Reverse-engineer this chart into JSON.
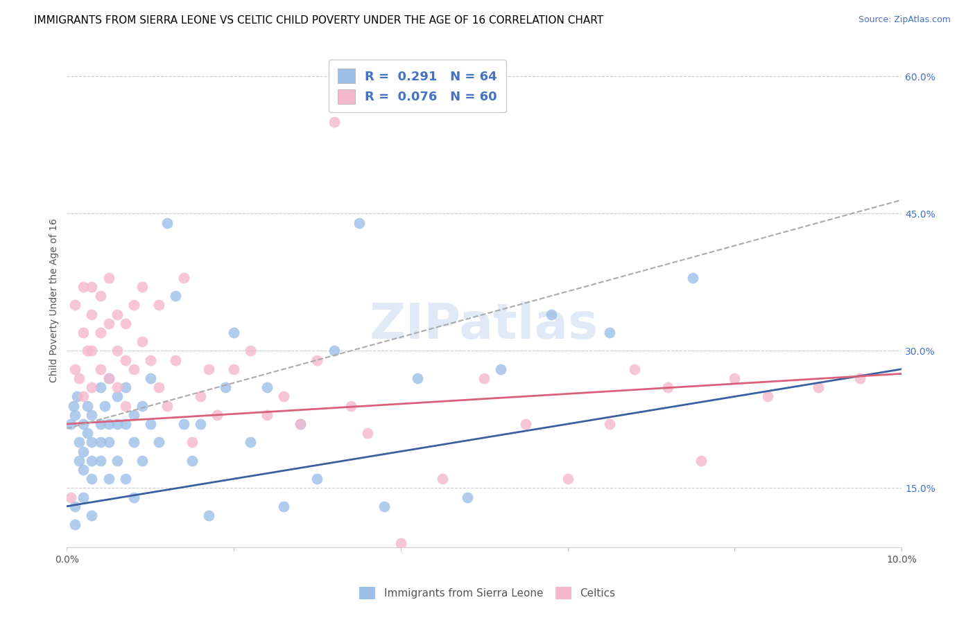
{
  "title": "IMMIGRANTS FROM SIERRA LEONE VS CELTIC CHILD POVERTY UNDER THE AGE OF 16 CORRELATION CHART",
  "source": "Source: ZipAtlas.com",
  "ylabel": "Child Poverty Under the Age of 16",
  "xlim": [
    0.0,
    0.1
  ],
  "ylim": [
    0.085,
    0.625
  ],
  "xticks": [
    0.0,
    0.02,
    0.04,
    0.06,
    0.08,
    0.1
  ],
  "xticklabels": [
    "0.0%",
    "",
    "",
    "",
    "",
    "10.0%"
  ],
  "yticks_right": [
    0.1,
    0.15,
    0.2,
    0.25,
    0.3,
    0.35,
    0.4,
    0.45,
    0.5,
    0.55,
    0.6
  ],
  "ytick_labels_right": [
    "",
    "15.0%",
    "",
    "",
    "30.0%",
    "",
    "",
    "45.0%",
    "",
    "",
    "60.0%"
  ],
  "legend_R1": "R =  0.291   N = 64",
  "legend_R2": "R =  0.076   N = 60",
  "legend_label1": "Immigrants from Sierra Leone",
  "legend_label2": "Celtics",
  "color_blue": "#9dbfe8",
  "color_pink": "#f5b8cc",
  "color_trend_blue": "#3a5fa0",
  "color_trend_pink": "#d9607a",
  "color_trend_dashed": "#aaaaaa",
  "title_fontsize": 11,
  "axis_label_fontsize": 10,
  "tick_fontsize": 10,
  "blue_trend_x": [
    0.0,
    0.1
  ],
  "blue_trend_y": [
    0.13,
    0.28
  ],
  "pink_trend_x": [
    0.0,
    0.1
  ],
  "pink_trend_y": [
    0.22,
    0.275
  ],
  "dashed_trend_x": [
    0.0,
    0.1
  ],
  "dashed_trend_y": [
    0.215,
    0.465
  ],
  "blue_scatter_x": [
    0.0005,
    0.0008,
    0.001,
    0.001,
    0.001,
    0.0012,
    0.0015,
    0.0015,
    0.002,
    0.002,
    0.002,
    0.002,
    0.0025,
    0.0025,
    0.003,
    0.003,
    0.003,
    0.003,
    0.003,
    0.004,
    0.004,
    0.004,
    0.004,
    0.0045,
    0.005,
    0.005,
    0.005,
    0.005,
    0.006,
    0.006,
    0.006,
    0.007,
    0.007,
    0.007,
    0.008,
    0.008,
    0.008,
    0.009,
    0.009,
    0.01,
    0.01,
    0.011,
    0.012,
    0.013,
    0.014,
    0.015,
    0.016,
    0.017,
    0.019,
    0.02,
    0.022,
    0.024,
    0.026,
    0.028,
    0.03,
    0.032,
    0.035,
    0.038,
    0.042,
    0.048,
    0.052,
    0.058,
    0.065,
    0.075
  ],
  "blue_scatter_y": [
    0.22,
    0.24,
    0.23,
    0.11,
    0.13,
    0.25,
    0.2,
    0.18,
    0.22,
    0.19,
    0.17,
    0.14,
    0.24,
    0.21,
    0.23,
    0.2,
    0.18,
    0.16,
    0.12,
    0.26,
    0.22,
    0.2,
    0.18,
    0.24,
    0.27,
    0.22,
    0.2,
    0.16,
    0.25,
    0.22,
    0.18,
    0.26,
    0.22,
    0.16,
    0.23,
    0.2,
    0.14,
    0.24,
    0.18,
    0.27,
    0.22,
    0.2,
    0.44,
    0.36,
    0.22,
    0.18,
    0.22,
    0.12,
    0.26,
    0.32,
    0.2,
    0.26,
    0.13,
    0.22,
    0.16,
    0.3,
    0.44,
    0.13,
    0.27,
    0.14,
    0.28,
    0.34,
    0.32,
    0.38
  ],
  "pink_scatter_x": [
    0.0005,
    0.001,
    0.001,
    0.0015,
    0.002,
    0.002,
    0.002,
    0.0025,
    0.003,
    0.003,
    0.003,
    0.003,
    0.004,
    0.004,
    0.004,
    0.005,
    0.005,
    0.005,
    0.006,
    0.006,
    0.006,
    0.007,
    0.007,
    0.007,
    0.008,
    0.008,
    0.009,
    0.009,
    0.01,
    0.011,
    0.011,
    0.012,
    0.013,
    0.014,
    0.015,
    0.016,
    0.017,
    0.018,
    0.02,
    0.022,
    0.024,
    0.026,
    0.028,
    0.03,
    0.032,
    0.034,
    0.036,
    0.04,
    0.045,
    0.05,
    0.055,
    0.06,
    0.065,
    0.068,
    0.072,
    0.076,
    0.08,
    0.084,
    0.09,
    0.095
  ],
  "pink_scatter_y": [
    0.14,
    0.35,
    0.28,
    0.27,
    0.37,
    0.32,
    0.25,
    0.3,
    0.37,
    0.34,
    0.3,
    0.26,
    0.36,
    0.32,
    0.28,
    0.38,
    0.33,
    0.27,
    0.34,
    0.3,
    0.26,
    0.33,
    0.29,
    0.24,
    0.35,
    0.28,
    0.37,
    0.31,
    0.29,
    0.35,
    0.26,
    0.24,
    0.29,
    0.38,
    0.2,
    0.25,
    0.28,
    0.23,
    0.28,
    0.3,
    0.23,
    0.25,
    0.22,
    0.29,
    0.55,
    0.24,
    0.21,
    0.09,
    0.16,
    0.27,
    0.22,
    0.16,
    0.22,
    0.28,
    0.26,
    0.18,
    0.27,
    0.25,
    0.26,
    0.27
  ]
}
